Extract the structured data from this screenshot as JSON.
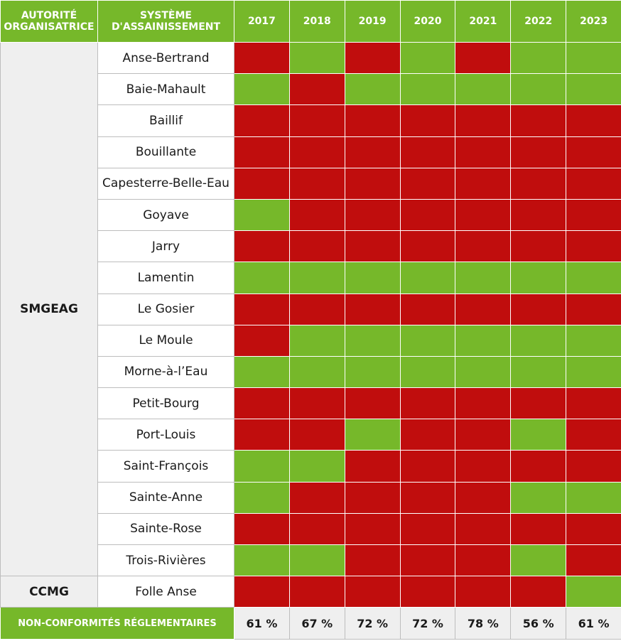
{
  "colors": {
    "header_green": "#76b82a",
    "conforme_green": "#76b82a",
    "non_conforme_red": "#c00d0d",
    "label_bg": "#efefef"
  },
  "headers": {
    "authority": "AUTORITÉ ORGANISATRICE",
    "system": "SYSTÈME D'ASSAINISSEMENT"
  },
  "chart_data": {
    "type": "table",
    "years": [
      "2017",
      "2018",
      "2019",
      "2020",
      "2021",
      "2022",
      "2023"
    ],
    "legend_meaning": {
      "C": "conforme (green)",
      "N": "non conforme (red)"
    },
    "groups": [
      {
        "authority": "SMGEAG",
        "rows": [
          {
            "system": "Anse-Bertrand",
            "status": [
              "N",
              "C",
              "N",
              "C",
              "N",
              "C",
              "C"
            ]
          },
          {
            "system": "Baie-Mahault",
            "status": [
              "C",
              "N",
              "C",
              "C",
              "C",
              "C",
              "C"
            ]
          },
          {
            "system": "Baillif",
            "status": [
              "N",
              "N",
              "N",
              "N",
              "N",
              "N",
              "N"
            ]
          },
          {
            "system": "Bouillante",
            "status": [
              "N",
              "N",
              "N",
              "N",
              "N",
              "N",
              "N"
            ]
          },
          {
            "system": "Capesterre-Belle-Eau",
            "status": [
              "N",
              "N",
              "N",
              "N",
              "N",
              "N",
              "N"
            ]
          },
          {
            "system": "Goyave",
            "status": [
              "C",
              "N",
              "N",
              "N",
              "N",
              "N",
              "N"
            ]
          },
          {
            "system": "Jarry",
            "status": [
              "N",
              "N",
              "N",
              "N",
              "N",
              "N",
              "N"
            ]
          },
          {
            "system": "Lamentin",
            "status": [
              "C",
              "C",
              "C",
              "C",
              "C",
              "C",
              "C"
            ]
          },
          {
            "system": "Le Gosier",
            "status": [
              "N",
              "N",
              "N",
              "N",
              "N",
              "N",
              "N"
            ]
          },
          {
            "system": "Le Moule",
            "status": [
              "N",
              "C",
              "C",
              "C",
              "C",
              "C",
              "C"
            ]
          },
          {
            "system": "Morne-à-l’Eau",
            "status": [
              "C",
              "C",
              "C",
              "C",
              "C",
              "C",
              "C"
            ]
          },
          {
            "system": "Petit-Bourg",
            "status": [
              "N",
              "N",
              "N",
              "N",
              "N",
              "N",
              "N"
            ]
          },
          {
            "system": "Port-Louis",
            "status": [
              "N",
              "N",
              "C",
              "N",
              "N",
              "C",
              "N"
            ]
          },
          {
            "system": "Saint-François",
            "status": [
              "C",
              "C",
              "N",
              "N",
              "N",
              "N",
              "N"
            ]
          },
          {
            "system": "Sainte-Anne",
            "status": [
              "C",
              "N",
              "N",
              "N",
              "N",
              "C",
              "C"
            ]
          },
          {
            "system": "Sainte-Rose",
            "status": [
              "N",
              "N",
              "N",
              "N",
              "N",
              "N",
              "N"
            ]
          },
          {
            "system": "Trois-Rivières",
            "status": [
              "C",
              "C",
              "N",
              "N",
              "N",
              "C",
              "N"
            ]
          }
        ]
      },
      {
        "authority": "CCMG",
        "rows": [
          {
            "system": "Folle Anse",
            "status": [
              "N",
              "N",
              "N",
              "N",
              "N",
              "N",
              "C"
            ]
          }
        ]
      }
    ],
    "footer_label": "NON-CONFORMITÉS RÉGLEMENTAIRES",
    "non_conformity_rates": [
      "61 %",
      "67 %",
      "72 %",
      "72 %",
      "78 %",
      "56 %",
      "61 %"
    ]
  }
}
